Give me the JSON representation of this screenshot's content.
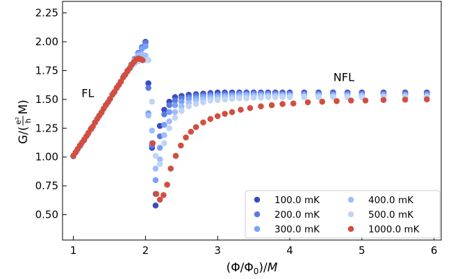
{
  "chart_data": {
    "type": "scatter",
    "xlim": [
      0.85,
      6.1
    ],
    "ylim": [
      0.28,
      2.35
    ],
    "xticks": [
      1,
      2,
      3,
      4,
      5,
      6
    ],
    "yticks": [
      0.5,
      0.75,
      1.0,
      1.25,
      1.5,
      1.75,
      2.0,
      2.25
    ],
    "xtick_labels": [
      "1",
      "2",
      "3",
      "4",
      "5",
      "6"
    ],
    "ytick_labels": [
      "0.50",
      "0.75",
      "1.00",
      "1.25",
      "1.50",
      "1.75",
      "2.00",
      "2.25"
    ],
    "xlabel": {
      "pre": "(Φ/Φ",
      "sub": "0",
      "post": ")/",
      "italic": "M"
    },
    "ylabel": {
      "pre": "G/(",
      "num": "e²",
      "den": "h",
      "post": "M)"
    },
    "grid": false,
    "legend_position": "lower-right",
    "legend_columns": 2,
    "annotations": [
      {
        "text": "FL",
        "x": 1.2,
        "y": 1.52
      },
      {
        "text": "NFL",
        "x": 4.75,
        "y": 1.66
      }
    ],
    "series": [
      {
        "name": "100.0 mK",
        "color": "#3a4cc0",
        "x": [
          1.0,
          1.05,
          1.1,
          1.15,
          1.2,
          1.25,
          1.3,
          1.35,
          1.4,
          1.45,
          1.5,
          1.55,
          1.6,
          1.65,
          1.7,
          1.75,
          1.8,
          1.85,
          1.9,
          1.95,
          2.0,
          2.04,
          2.09,
          2.14,
          2.2,
          2.26,
          2.33,
          2.41,
          2.5,
          2.6,
          2.7,
          2.8,
          2.9,
          3.0,
          3.1,
          3.2,
          3.3,
          3.4,
          3.5,
          3.6,
          3.7,
          3.8,
          3.9,
          4.0,
          4.2,
          4.4,
          4.6,
          4.8,
          5.0,
          5.3,
          5.6,
          5.9
        ],
        "y": [
          1.01,
          1.051,
          1.101,
          1.146,
          1.195,
          1.245,
          1.3,
          1.349,
          1.401,
          1.451,
          1.497,
          1.55,
          1.598,
          1.649,
          1.704,
          1.751,
          1.8,
          1.852,
          1.903,
          1.952,
          2.0,
          1.64,
          1.08,
          0.58,
          1.27,
          1.41,
          1.48,
          1.52,
          1.53,
          1.54,
          1.545,
          1.55,
          1.555,
          1.56,
          1.56,
          1.56,
          1.56,
          1.56,
          1.56,
          1.56,
          1.56,
          1.56,
          1.56,
          1.56,
          1.56,
          1.56,
          1.56,
          1.56,
          1.56,
          1.56,
          1.56,
          1.56
        ]
      },
      {
        "name": "200.0 mK",
        "color": "#5b7ae0",
        "x": [
          1.0,
          1.05,
          1.1,
          1.15,
          1.2,
          1.25,
          1.3,
          1.35,
          1.4,
          1.45,
          1.5,
          1.55,
          1.6,
          1.65,
          1.7,
          1.75,
          1.8,
          1.85,
          1.9,
          1.95,
          2.0,
          2.04,
          2.09,
          2.14,
          2.2,
          2.26,
          2.33,
          2.41,
          2.5,
          2.6,
          2.7,
          2.8,
          2.9,
          3.0,
          3.1,
          3.2,
          3.3,
          3.4,
          3.5,
          3.6,
          3.7,
          3.8,
          3.9,
          4.0,
          4.2,
          4.4,
          4.6,
          4.8,
          5.0,
          5.3,
          5.6,
          5.9
        ],
        "y": [
          1.007,
          1.05,
          1.1,
          1.149,
          1.196,
          1.25,
          1.297,
          1.349,
          1.4,
          1.449,
          1.497,
          1.548,
          1.6,
          1.651,
          1.703,
          1.749,
          1.8,
          1.85,
          1.899,
          1.95,
          1.99,
          1.6,
          1.1,
          0.68,
          1.18,
          1.37,
          1.45,
          1.49,
          1.51,
          1.52,
          1.53,
          1.535,
          1.54,
          1.54,
          1.545,
          1.545,
          1.55,
          1.55,
          1.55,
          1.55,
          1.55,
          1.55,
          1.55,
          1.55,
          1.55,
          1.55,
          1.55,
          1.55,
          1.55,
          1.55,
          1.55,
          1.55
        ]
      },
      {
        "name": "300.0 mK",
        "color": "#7b9ff9",
        "x": [
          1.0,
          1.05,
          1.1,
          1.15,
          1.2,
          1.25,
          1.3,
          1.35,
          1.4,
          1.45,
          1.5,
          1.55,
          1.6,
          1.65,
          1.7,
          1.75,
          1.8,
          1.85,
          1.9,
          1.95,
          2.0,
          2.04,
          2.09,
          2.14,
          2.2,
          2.26,
          2.33,
          2.41,
          2.5,
          2.6,
          2.7,
          2.8,
          2.9,
          3.0,
          3.1,
          3.2,
          3.3,
          3.4,
          3.5,
          3.6,
          3.7,
          3.8,
          3.9,
          4.0,
          4.2,
          4.4,
          4.6,
          4.8,
          5.0,
          5.3,
          5.6,
          5.9
        ],
        "y": [
          1.01,
          1.054,
          1.096,
          1.148,
          1.2,
          1.253,
          1.3,
          1.351,
          1.4,
          1.45,
          1.5,
          1.55,
          1.598,
          1.647,
          1.698,
          1.751,
          1.795,
          1.849,
          1.898,
          1.94,
          1.96,
          1.38,
          1.12,
          0.8,
          1.08,
          1.28,
          1.39,
          1.45,
          1.48,
          1.5,
          1.51,
          1.52,
          1.525,
          1.53,
          1.53,
          1.535,
          1.54,
          1.54,
          1.54,
          1.54,
          1.54,
          1.54,
          1.54,
          1.54,
          1.54,
          1.54,
          1.54,
          1.54,
          1.54,
          1.54,
          1.54,
          1.54
        ]
      },
      {
        "name": "400.0 mK",
        "color": "#9ebeff",
        "x": [
          1.0,
          1.05,
          1.1,
          1.15,
          1.2,
          1.25,
          1.3,
          1.35,
          1.4,
          1.45,
          1.5,
          1.55,
          1.6,
          1.65,
          1.7,
          1.75,
          1.8,
          1.85,
          1.9,
          1.95,
          2.0,
          2.04,
          2.09,
          2.14,
          2.2,
          2.26,
          2.33,
          2.41,
          2.5,
          2.6,
          2.7,
          2.8,
          2.9,
          3.0,
          3.1,
          3.2,
          3.3,
          3.4,
          3.5,
          3.6,
          3.7,
          3.8,
          3.9,
          4.0,
          4.2,
          4.4,
          4.6,
          4.8,
          5.0,
          5.3,
          5.6,
          5.9
        ],
        "y": [
          1.009,
          1.048,
          1.104,
          1.154,
          1.201,
          1.25,
          1.298,
          1.35,
          1.4,
          1.451,
          1.5,
          1.552,
          1.6,
          1.651,
          1.7,
          1.75,
          1.795,
          1.84,
          1.88,
          1.89,
          1.88,
          1.36,
          1.23,
          0.9,
          0.98,
          1.19,
          1.31,
          1.39,
          1.44,
          1.47,
          1.49,
          1.5,
          1.51,
          1.515,
          1.52,
          1.52,
          1.525,
          1.53,
          1.53,
          1.53,
          1.53,
          1.53,
          1.53,
          1.53,
          1.53,
          1.53,
          1.53,
          1.53,
          1.53,
          1.53,
          1.53,
          1.53
        ]
      },
      {
        "name": "500.0 mK",
        "color": "#c0d4f5",
        "x": [
          1.0,
          1.05,
          1.1,
          1.15,
          1.2,
          1.25,
          1.3,
          1.35,
          1.4,
          1.45,
          1.5,
          1.55,
          1.6,
          1.65,
          1.7,
          1.75,
          1.8,
          1.85,
          1.9,
          1.95,
          2.0,
          2.04,
          2.09,
          2.14,
          2.2,
          2.26,
          2.33,
          2.41,
          2.5,
          2.6,
          2.7,
          2.8,
          2.9,
          3.0,
          3.1,
          3.2,
          3.3,
          3.4,
          3.5,
          3.6,
          3.7,
          3.8,
          3.9,
          4.0,
          4.2,
          4.4,
          4.6,
          4.8,
          5.0,
          5.3,
          5.6,
          5.9
        ],
        "y": [
          1.012,
          1.05,
          1.1,
          1.149,
          1.198,
          1.247,
          1.302,
          1.351,
          1.399,
          1.448,
          1.499,
          1.548,
          1.6,
          1.65,
          1.695,
          1.74,
          1.78,
          1.81,
          1.83,
          1.84,
          1.84,
          1.84,
          1.48,
          1.01,
          0.94,
          1.12,
          1.25,
          1.34,
          1.4,
          1.44,
          1.46,
          1.475,
          1.49,
          1.495,
          1.5,
          1.505,
          1.51,
          1.51,
          1.515,
          1.515,
          1.52,
          1.52,
          1.52,
          1.52,
          1.52,
          1.52,
          1.52,
          1.52,
          1.52,
          1.52,
          1.52,
          1.52
        ]
      },
      {
        "name": "1000.0 mK",
        "color": "#d24e40",
        "x": [
          1.0,
          1.03,
          1.06,
          1.09,
          1.12,
          1.15,
          1.18,
          1.21,
          1.24,
          1.27,
          1.3,
          1.33,
          1.36,
          1.39,
          1.42,
          1.45,
          1.48,
          1.51,
          1.54,
          1.57,
          1.6,
          1.63,
          1.66,
          1.69,
          1.72,
          1.75,
          1.78,
          1.81,
          1.84,
          1.87,
          1.9,
          1.93,
          1.96,
          2.1,
          2.15,
          2.2,
          2.25,
          2.3,
          2.35,
          2.42,
          2.49,
          2.56,
          2.63,
          2.7,
          2.8,
          2.9,
          3.0,
          3.1,
          3.2,
          3.32,
          3.45,
          3.6,
          3.75,
          3.9,
          4.05,
          4.25,
          4.45,
          4.65,
          4.85,
          5.05,
          5.3,
          5.6,
          5.9
        ],
        "y": [
          1.01,
          1.04,
          1.07,
          1.1,
          1.125,
          1.15,
          1.18,
          1.21,
          1.24,
          1.265,
          1.3,
          1.33,
          1.36,
          1.385,
          1.42,
          1.45,
          1.475,
          1.505,
          1.54,
          1.565,
          1.6,
          1.625,
          1.655,
          1.69,
          1.715,
          1.745,
          1.77,
          1.8,
          1.825,
          1.845,
          1.855,
          1.85,
          1.84,
          1.12,
          0.68,
          0.63,
          0.67,
          0.76,
          0.9,
          1.01,
          1.1,
          1.17,
          1.22,
          1.26,
          1.3,
          1.33,
          1.355,
          1.375,
          1.39,
          1.41,
          1.425,
          1.44,
          1.45,
          1.46,
          1.465,
          1.475,
          1.48,
          1.485,
          1.49,
          1.49,
          1.495,
          1.498,
          1.5
        ]
      }
    ]
  }
}
